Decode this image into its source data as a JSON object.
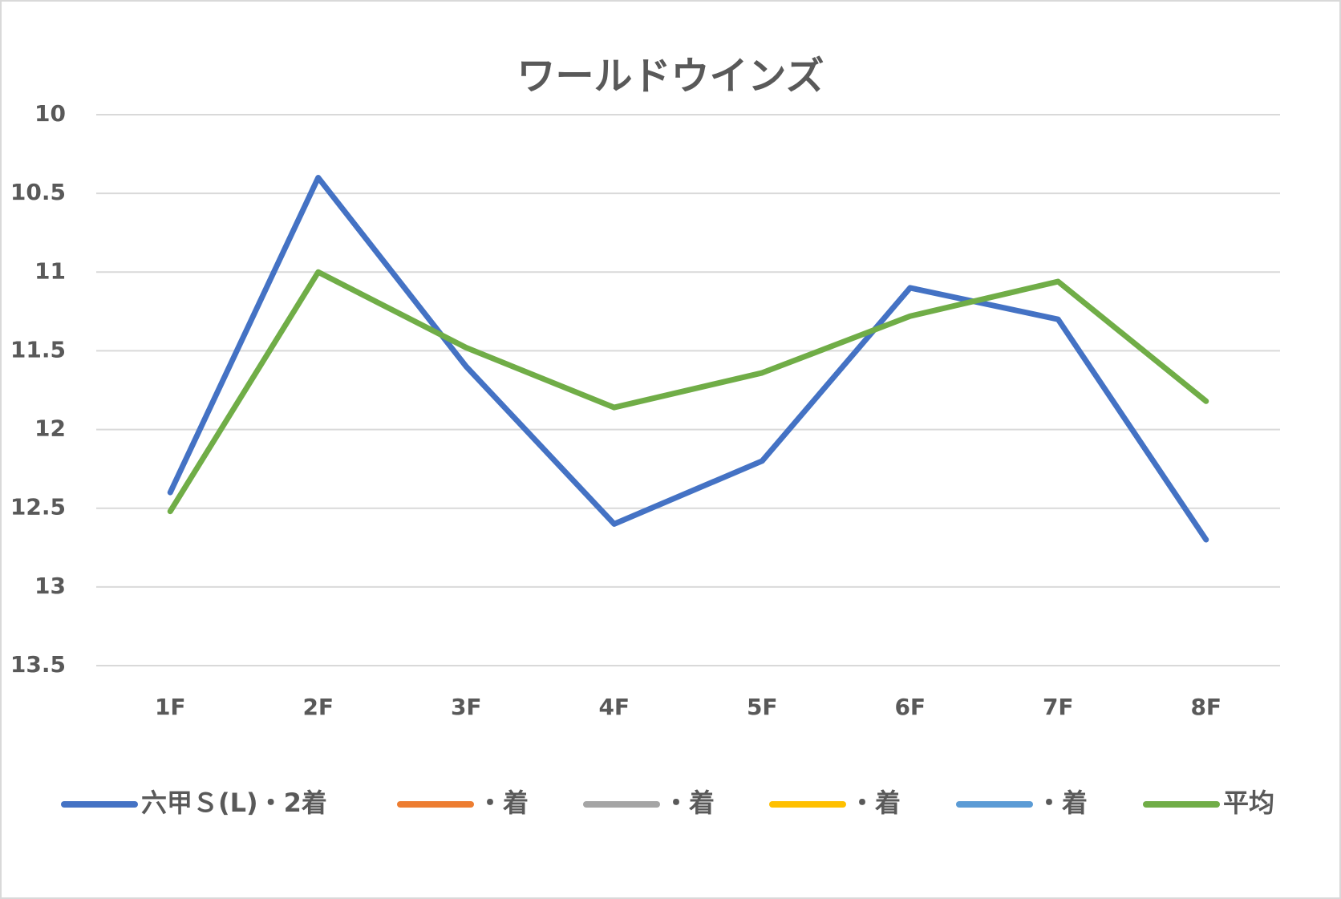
{
  "chart_data": {
    "type": "line",
    "title": "ワールドウインズ",
    "categories": [
      "1F",
      "2F",
      "3F",
      "4F",
      "5F",
      "6F",
      "7F",
      "8F"
    ],
    "series": [
      {
        "name": "六甲Ｓ(L)・2着",
        "color": "#4472c4",
        "values": [
          12.4,
          10.4,
          11.6,
          12.6,
          12.2,
          11.1,
          11.3,
          12.7
        ]
      },
      {
        "name": "・着",
        "color": "#ed7d31",
        "values": [
          null,
          null,
          null,
          null,
          null,
          null,
          null,
          null
        ]
      },
      {
        "name": "・着",
        "color": "#a5a5a5",
        "values": [
          null,
          null,
          null,
          null,
          null,
          null,
          null,
          null
        ]
      },
      {
        "name": "・着",
        "color": "#ffc000",
        "values": [
          null,
          null,
          null,
          null,
          null,
          null,
          null,
          null
        ]
      },
      {
        "name": "・着",
        "color": "#5b9bd5",
        "values": [
          null,
          null,
          null,
          null,
          null,
          null,
          null,
          null
        ]
      },
      {
        "name": "平均",
        "color": "#70ad47",
        "values": [
          12.52,
          11.0,
          11.48,
          11.86,
          11.64,
          11.28,
          11.06,
          11.82
        ]
      }
    ],
    "ylim": [
      10,
      13.5
    ],
    "y_inverted": true,
    "yticks": [
      10,
      10.5,
      11,
      11.5,
      12,
      12.5,
      13,
      13.5
    ],
    "grid": true,
    "legend": "bottom"
  }
}
